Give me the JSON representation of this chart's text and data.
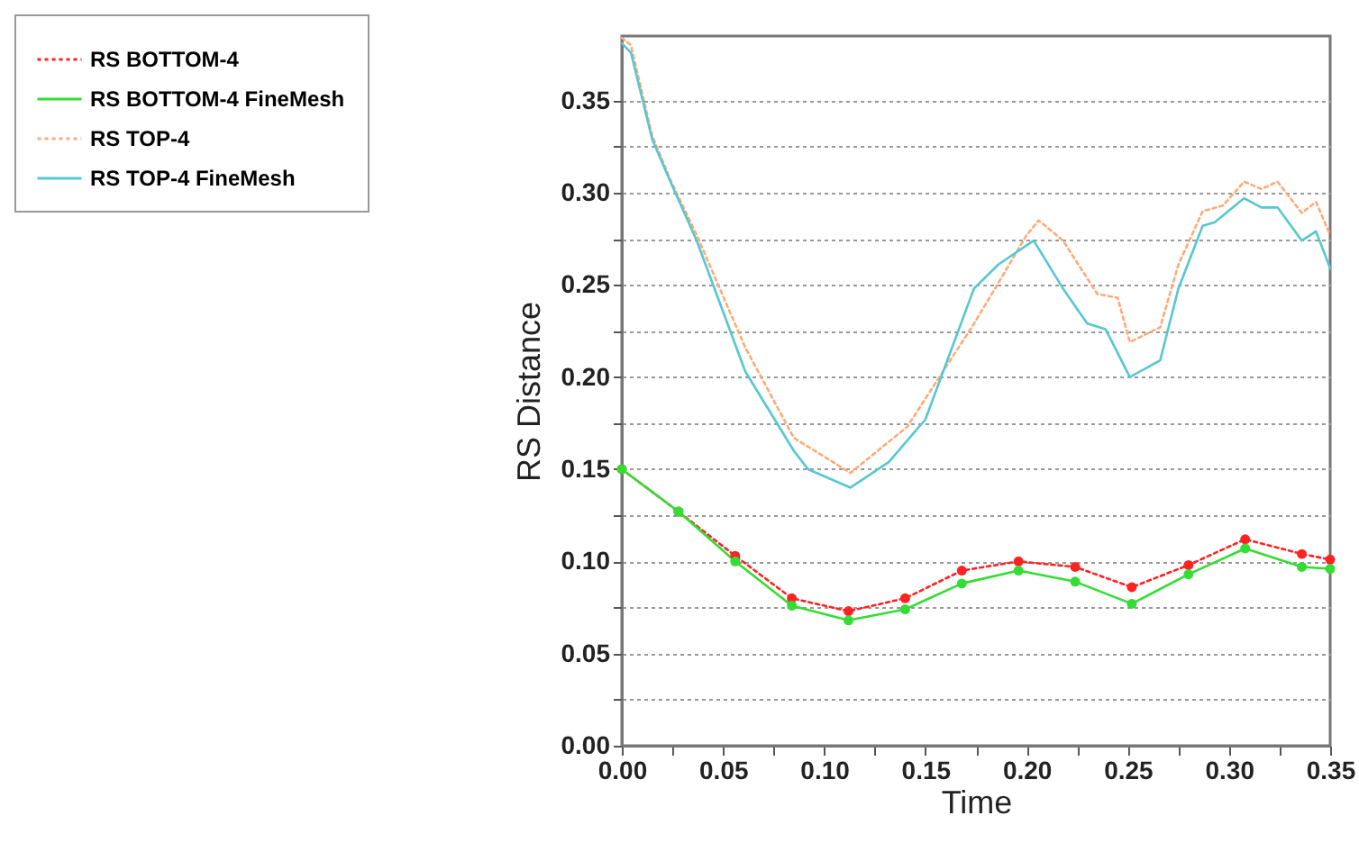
{
  "chart_data": {
    "type": "line",
    "xlabel": "Time",
    "ylabel": "RS Distance",
    "xlim": [
      0,
      0.35
    ],
    "ylim": [
      0,
      0.385
    ],
    "xticks": [
      {
        "value": 0,
        "label": "0.00"
      },
      {
        "value": 0.025,
        "label": null
      },
      {
        "value": 0.05,
        "label": "0.05"
      },
      {
        "value": 0.075,
        "label": null
      },
      {
        "value": 0.1,
        "label": "0.10"
      },
      {
        "value": 0.125,
        "label": null
      },
      {
        "value": 0.15,
        "label": "0.15"
      },
      {
        "value": 0.175,
        "label": null
      },
      {
        "value": 0.2,
        "label": "0.20"
      },
      {
        "value": 0.225,
        "label": null
      },
      {
        "value": 0.25,
        "label": "0.25"
      },
      {
        "value": 0.275,
        "label": null
      },
      {
        "value": 0.3,
        "label": "0.30"
      },
      {
        "value": 0.325,
        "label": null
      },
      {
        "value": 0.35,
        "label": "0.35"
      }
    ],
    "yticks": [
      {
        "value": 0,
        "label": "0.00"
      },
      {
        "value": 0.025,
        "label": null
      },
      {
        "value": 0.05,
        "label": "0.05"
      },
      {
        "value": 0.075,
        "label": null
      },
      {
        "value": 0.1,
        "label": "0.10"
      },
      {
        "value": 0.125,
        "label": null
      },
      {
        "value": 0.15,
        "label": "0.15"
      },
      {
        "value": 0.175,
        "label": null
      },
      {
        "value": 0.2,
        "label": "0.20"
      },
      {
        "value": 0.225,
        "label": null
      },
      {
        "value": 0.25,
        "label": "0.25"
      },
      {
        "value": 0.275,
        "label": null
      },
      {
        "value": 0.3,
        "label": "0.30"
      },
      {
        "value": 0.325,
        "label": null
      },
      {
        "value": 0.35,
        "label": "0.35"
      }
    ],
    "grid": "y",
    "legend": "top left",
    "series": [
      {
        "name": "RS BOTTOM-4",
        "color": "#ff2222",
        "line_style": "dotted",
        "marker": "circle",
        "x": [
          0,
          0.028,
          0.056,
          0.084,
          0.112,
          0.14,
          0.168,
          0.196,
          0.224,
          0.252,
          0.28,
          0.308,
          0.336,
          0.35
        ],
        "values": [
          0.15,
          0.127,
          0.103,
          0.08,
          0.073,
          0.08,
          0.095,
          0.1,
          0.097,
          0.086,
          0.098,
          0.112,
          0.104,
          0.101
        ]
      },
      {
        "name": "RS BOTTOM-4 FineMesh",
        "color": "#33dd33",
        "line_style": "solid",
        "marker": "circle",
        "x": [
          0,
          0.028,
          0.056,
          0.084,
          0.112,
          0.14,
          0.168,
          0.196,
          0.224,
          0.252,
          0.28,
          0.308,
          0.336,
          0.35
        ],
        "values": [
          0.15,
          0.127,
          0.1,
          0.076,
          0.068,
          0.074,
          0.088,
          0.095,
          0.089,
          0.077,
          0.093,
          0.107,
          0.097,
          0.096
        ]
      },
      {
        "name": "RS TOP-4",
        "color": "#ffaa77",
        "line_style": "dotted",
        "marker": "none",
        "x": [
          0,
          0.0045,
          0.015,
          0.024,
          0.037,
          0.061,
          0.085,
          0.113,
          0.132,
          0.141,
          0.174,
          0.186,
          0.2,
          0.206,
          0.218,
          0.235,
          0.245,
          0.251,
          0.266,
          0.275,
          0.287,
          0.297,
          0.3075,
          0.316,
          0.324,
          0.336,
          0.343,
          0.35
        ],
        "values": [
          0.384,
          0.38,
          0.331,
          0.307,
          0.277,
          0.216,
          0.167,
          0.148,
          0.165,
          0.173,
          0.229,
          0.251,
          0.277,
          0.285,
          0.274,
          0.245,
          0.243,
          0.219,
          0.227,
          0.261,
          0.29,
          0.293,
          0.306,
          0.302,
          0.306,
          0.289,
          0.295,
          0.277
        ]
      },
      {
        "name": "RS TOP-4 FineMesh",
        "color": "#55c8d0",
        "line_style": "solid",
        "marker": "none",
        "x": [
          0,
          0.0045,
          0.015,
          0.024,
          0.037,
          0.061,
          0.085,
          0.092,
          0.113,
          0.132,
          0.15,
          0.174,
          0.186,
          0.2035,
          0.218,
          0.23,
          0.239,
          0.251,
          0.266,
          0.275,
          0.287,
          0.293,
          0.3075,
          0.316,
          0.324,
          0.336,
          0.343,
          0.35
        ],
        "values": [
          0.381,
          0.376,
          0.329,
          0.306,
          0.274,
          0.203,
          0.16,
          0.15,
          0.14,
          0.154,
          0.177,
          0.248,
          0.261,
          0.274,
          0.248,
          0.229,
          0.226,
          0.2,
          0.209,
          0.248,
          0.282,
          0.284,
          0.297,
          0.292,
          0.292,
          0.274,
          0.279,
          0.259
        ]
      }
    ]
  }
}
